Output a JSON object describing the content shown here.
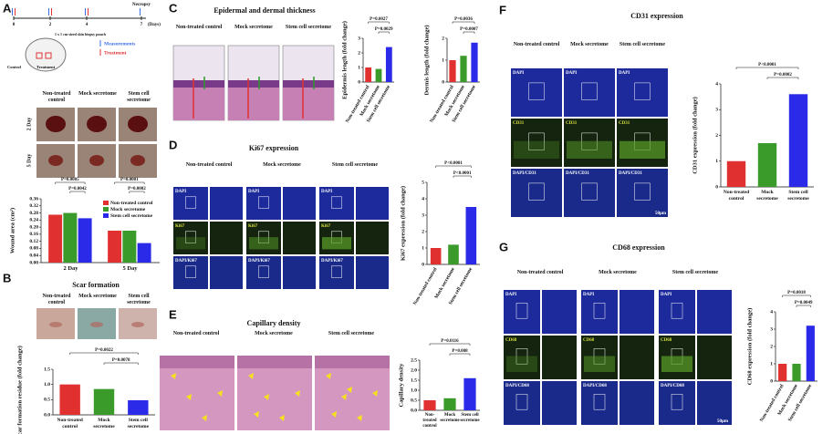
{
  "panels": {
    "A": {
      "label": "A",
      "timeline": {
        "ticks": [
          "0",
          "2",
          "4",
          "7"
        ],
        "unit": "(Days)",
        "necropsy": "Necropsy",
        "measurements": "Measurements",
        "treatment": "Treatment"
      },
      "mouse": {
        "note": "1 x 1 cm-sized skin biopsy punch",
        "control": "Control",
        "treatment": "Treatment"
      },
      "columns": [
        "Non-treated control",
        "Mock secretome",
        "Stem cell secretome"
      ],
      "rows": [
        "2 Day",
        "5 Day"
      ]
    },
    "B": {
      "label": "B",
      "title": "Scar formation",
      "columns": [
        "Non-treated control",
        "Mock secretome",
        "Stem cell secretome"
      ]
    },
    "C": {
      "label": "C",
      "title": "Epidermal and dermal thickness",
      "columns": [
        "Non-treated control",
        "Mock secretome",
        "Stem cell secretome"
      ]
    },
    "D": {
      "label": "D",
      "title": "Ki67 expression",
      "columns": [
        "Non-treated control",
        "Mock secretome",
        "Stem cell secretome"
      ],
      "rows": [
        "DAPI",
        "Ki67",
        "DAPI/Ki67"
      ]
    },
    "E": {
      "label": "E",
      "title": "Capillary density",
      "columns": [
        "Non-treated control",
        "Mock secretome",
        "Stem cell secretome"
      ]
    },
    "F": {
      "label": "F",
      "title": "CD31 expression",
      "columns": [
        "Non-treated control",
        "Mock secretome",
        "Stem cell secretome"
      ],
      "rows": [
        "DAPI",
        "CD31",
        "DAPI/CD31"
      ],
      "scale": "50μm"
    },
    "G": {
      "label": "G",
      "title": "CD68 expression",
      "columns": [
        "Non-treated control",
        "Mock secretome",
        "Stem cell secretome"
      ],
      "rows": [
        "DAPI",
        "CD68",
        "DAPI/CD68"
      ],
      "scale": "50μm"
    }
  },
  "chart_data": [
    {
      "type": "bar",
      "ylabel": "Wound area (cm²)",
      "categories": [
        "2 Day",
        "5 Day"
      ],
      "series": [
        {
          "name": "Non-treated control",
          "color": "#e03030",
          "values": [
            0.27,
            0.18
          ]
        },
        {
          "name": "Mock secretome",
          "color": "#3a9a2a",
          "values": [
            0.28,
            0.18
          ]
        },
        {
          "name": "Stem cell secretome",
          "color": "#2a2ae8",
          "values": [
            0.25,
            0.11
          ]
        }
      ],
      "legend": "upper right",
      "ylim": [
        0,
        0.36
      ],
      "yticks": [
        {
          "value": 0,
          "label": "0.00"
        },
        {
          "value": 0.04,
          "label": "0.04"
        },
        {
          "value": 0.08,
          "label": "0.08"
        },
        {
          "value": 0.12,
          "label": "0.12"
        },
        {
          "value": 0.16,
          "label": "0.16"
        },
        {
          "value": 0.2,
          "label": "0.20"
        },
        {
          "value": 0.24,
          "label": "0.24"
        },
        {
          "value": 0.28,
          "label": "0.28"
        },
        {
          "value": 0.32,
          "label": "0.32"
        },
        {
          "value": 0.36,
          "label": "0.36"
        }
      ],
      "annotations": [
        "P=0.0005",
        "P=0.0042",
        "P=0.0001",
        "P=0.0002"
      ]
    },
    {
      "type": "bar",
      "ylabel": "Scar formation residue (fold change)",
      "categories": [
        "Non-treated control",
        "Mock secretome",
        "Stem cell secretome"
      ],
      "values": [
        1.0,
        0.85,
        0.48
      ],
      "colors": [
        "#e03030",
        "#3a9a2a",
        "#2a2ae8"
      ],
      "ylim": [
        0,
        1.5
      ],
      "yticks": [
        {
          "value": 0,
          "label": "0.0"
        },
        0.5,
        {
          "value": 1,
          "label": "1.0"
        },
        1.5
      ],
      "annotations": [
        "P=0.0022",
        "P=0.0078"
      ]
    },
    {
      "type": "bar",
      "ylabel": "Epidermis length (fold change)",
      "categories": [
        "Non-treated control",
        "Mock secretome",
        "Stem cell secretome"
      ],
      "values": [
        1.0,
        0.9,
        2.4
      ],
      "colors": [
        "#e03030",
        "#3a9a2a",
        "#2a2ae8"
      ],
      "ylim": [
        0,
        3
      ],
      "yticks": [
        0,
        1,
        2,
        3
      ],
      "annotations": [
        "P=0.0027",
        "P=0.0029"
      ]
    },
    {
      "type": "bar",
      "ylabel": "Dermis length (fold change)",
      "categories": [
        "Non-treated control",
        "Mock secretome",
        "Stem cell secretome"
      ],
      "values": [
        1.0,
        1.2,
        1.8
      ],
      "colors": [
        "#e03030",
        "#3a9a2a",
        "#2a2ae8"
      ],
      "ylim": [
        0,
        2
      ],
      "yticks": [
        0,
        1,
        2
      ],
      "annotations": [
        "P=0.0036",
        "P=0.0007"
      ]
    },
    {
      "type": "bar",
      "ylabel": "Ki67 expression (fold change)",
      "categories": [
        "Non-treated control",
        "Mock secretome",
        "Stem cell secretome"
      ],
      "values": [
        1.0,
        1.2,
        3.5
      ],
      "colors": [
        "#e03030",
        "#3a9a2a",
        "#2a2ae8"
      ],
      "ylim": [
        0,
        5
      ],
      "yticks": [
        0,
        1,
        2,
        3,
        4,
        5
      ],
      "annotations": [
        "P<0.0001",
        "P<0.0001"
      ]
    },
    {
      "type": "bar",
      "ylabel": "Capillary density",
      "categories": [
        "Non-treated control",
        "Mock secretome",
        "Stem cell secretome"
      ],
      "values": [
        0.5,
        0.6,
        1.6
      ],
      "colors": [
        "#e03030",
        "#3a9a2a",
        "#2a2ae8"
      ],
      "ylim": [
        0,
        2.5
      ],
      "yticks": [
        {
          "value": 0,
          "label": "0.0"
        },
        0.5,
        {
          "value": 1,
          "label": "1.0"
        },
        1.5,
        {
          "value": 2,
          "label": "2.0"
        },
        2.5
      ],
      "annotations": [
        "P=0.0116",
        "P=0.008"
      ]
    },
    {
      "type": "bar",
      "ylabel": "CD31 expression (fold change)",
      "categories": [
        "Non-treated control",
        "Mock secretome",
        "Stem cell secretome"
      ],
      "values": [
        1.0,
        1.7,
        3.6
      ],
      "colors": [
        "#e03030",
        "#3a9a2a",
        "#2a2ae8"
      ],
      "ylim": [
        0,
        4
      ],
      "yticks": [
        0,
        1,
        2,
        3,
        4
      ],
      "annotations": [
        "P<0.0001",
        "P=0.0002"
      ]
    },
    {
      "type": "bar",
      "ylabel": "CD68 expression (fold change)",
      "categories": [
        "Non-treated control",
        "Mock secretome",
        "Stem cell secretome"
      ],
      "values": [
        1.0,
        1.0,
        3.2
      ],
      "colors": [
        "#e03030",
        "#3a9a2a",
        "#2a2ae8"
      ],
      "ylim": [
        0,
        4
      ],
      "yticks": [
        0,
        1,
        2,
        3,
        4
      ],
      "annotations": [
        "P=0.0018",
        "P=0.0049"
      ]
    }
  ]
}
